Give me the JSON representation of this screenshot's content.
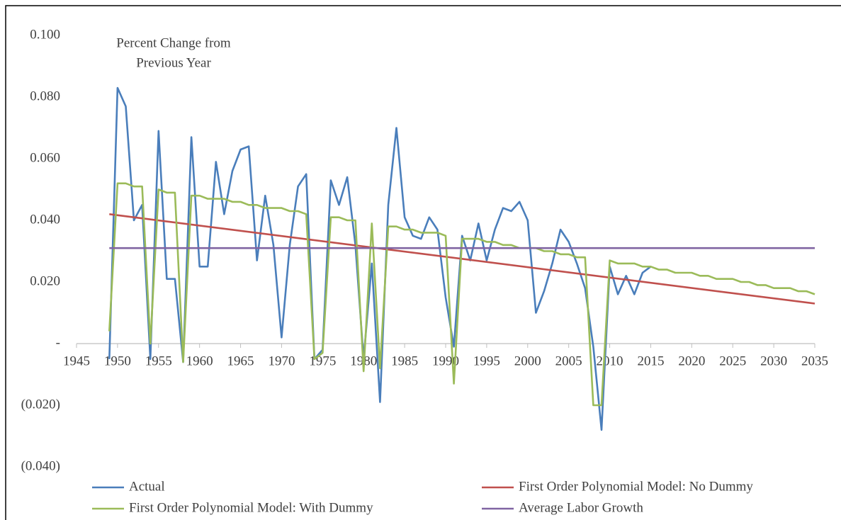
{
  "chart_data": {
    "type": "line",
    "annotation": [
      "Percent Change from",
      "Previous Year"
    ],
    "x": [
      1949,
      1950,
      1951,
      1952,
      1953,
      1954,
      1955,
      1956,
      1957,
      1958,
      1959,
      1960,
      1961,
      1962,
      1963,
      1964,
      1965,
      1966,
      1967,
      1968,
      1969,
      1970,
      1971,
      1972,
      1973,
      1974,
      1975,
      1976,
      1977,
      1978,
      1979,
      1980,
      1981,
      1982,
      1983,
      1984,
      1985,
      1986,
      1987,
      1988,
      1989,
      1990,
      1991,
      1992,
      1993,
      1994,
      1995,
      1996,
      1997,
      1998,
      1999,
      2000,
      2001,
      2002,
      2003,
      2004,
      2005,
      2006,
      2007,
      2008,
      2009,
      2010,
      2011,
      2012,
      2013,
      2014,
      2015,
      2016,
      2017,
      2018,
      2019,
      2020,
      2021,
      2022,
      2023,
      2024,
      2025,
      2026,
      2027,
      2028,
      2029,
      2030,
      2031,
      2032,
      2033,
      2034,
      2035
    ],
    "series": [
      {
        "name": "Actual",
        "color": "#4a7ebb",
        "values": [
          -0.005,
          0.083,
          0.077,
          0.04,
          0.045,
          -0.005,
          0.069,
          0.021,
          0.021,
          -0.006,
          0.067,
          0.025,
          0.025,
          0.059,
          0.042,
          0.056,
          0.063,
          0.064,
          0.027,
          0.048,
          0.032,
          0.002,
          0.032,
          0.051,
          0.055,
          -0.005,
          -0.002,
          0.053,
          0.045,
          0.054,
          0.032,
          -0.005,
          0.026,
          -0.019,
          0.045,
          0.07,
          0.041,
          0.035,
          0.034,
          0.041,
          0.037,
          0.015,
          -0.001,
          0.035,
          0.027,
          0.039,
          0.027,
          0.037,
          0.044,
          0.043,
          0.046,
          0.04,
          0.01,
          0.017,
          0.026,
          0.037,
          0.033,
          0.026,
          0.018,
          -0.001,
          -0.028,
          0.025,
          0.016,
          0.022,
          0.016,
          0.023,
          0.025,
          null,
          null,
          null,
          null,
          null,
          null,
          null,
          null,
          null,
          null,
          null,
          null,
          null,
          null,
          null,
          null,
          null,
          null,
          null,
          null
        ]
      },
      {
        "name": "First Order Polynomial Model: No Dummy",
        "color": "#c0504d",
        "x": [
          1949,
          2035
        ],
        "values": [
          0.042,
          0.013
        ]
      },
      {
        "name": "First Order Polynomial Model: With Dummy",
        "color": "#9bbb59",
        "values": [
          0.004,
          0.052,
          0.052,
          0.051,
          0.051,
          0.0,
          0.05,
          0.049,
          0.049,
          -0.006,
          0.048,
          0.048,
          0.047,
          0.047,
          0.047,
          0.046,
          0.046,
          0.045,
          0.045,
          0.044,
          0.044,
          0.044,
          0.043,
          0.043,
          0.042,
          -0.005,
          -0.003,
          0.041,
          0.041,
          0.04,
          0.04,
          -0.009,
          0.039,
          -0.008,
          0.038,
          0.038,
          0.037,
          0.037,
          0.036,
          0.036,
          0.036,
          0.035,
          -0.013,
          0.034,
          0.034,
          0.034,
          0.033,
          0.033,
          0.032,
          0.032,
          0.031,
          0.031,
          0.031,
          0.03,
          0.03,
          0.029,
          0.029,
          0.028,
          0.028,
          -0.02,
          -0.02,
          0.027,
          0.026,
          0.026,
          0.026,
          0.025,
          0.025,
          0.024,
          0.024,
          0.023,
          0.023,
          0.023,
          0.022,
          0.022,
          0.021,
          0.021,
          0.021,
          0.02,
          0.02,
          0.019,
          0.019,
          0.018,
          0.018,
          0.018,
          0.017,
          0.017,
          0.016
        ]
      },
      {
        "name": "Average Labor Growth",
        "color": "#8064a2",
        "x": [
          1949,
          2035
        ],
        "values": [
          0.031,
          0.031
        ]
      }
    ],
    "xlim": [
      1945,
      2035
    ],
    "xticks": [
      1945,
      1950,
      1955,
      1960,
      1965,
      1970,
      1975,
      1980,
      1985,
      1990,
      1995,
      2000,
      2005,
      2010,
      2015,
      2020,
      2025,
      2030,
      2035
    ],
    "ylim": [
      -0.04,
      0.1
    ],
    "yticks": [
      {
        "value": -0.04,
        "label": "(0.040)"
      },
      {
        "value": -0.02,
        "label": "(0.020)"
      },
      {
        "value": 0,
        "label": "-"
      },
      {
        "value": 0.02,
        "label": "0.020"
      },
      {
        "value": 0.04,
        "label": "0.040"
      },
      {
        "value": 0.06,
        "label": "0.060"
      },
      {
        "value": 0.08,
        "label": "0.080"
      },
      {
        "value": 0.1,
        "label": "0.100"
      }
    ],
    "grid": false,
    "legend": "bottom"
  }
}
